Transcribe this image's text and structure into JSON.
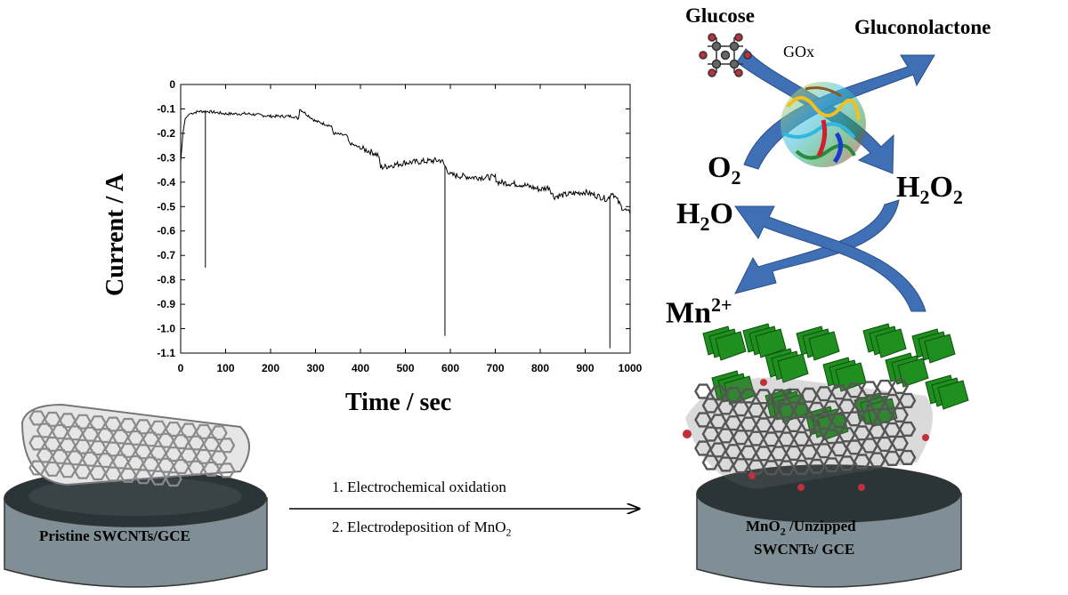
{
  "chart_data": {
    "type": "line",
    "xlabel": "Time / sec",
    "ylabel": "Current /  A",
    "xlim": [
      0,
      1000
    ],
    "ylim": [
      -1.1,
      0
    ],
    "xticks": [
      0,
      100,
      200,
      300,
      400,
      500,
      600,
      700,
      800,
      900,
      1000
    ],
    "xtick_labels": [
      "0",
      "100",
      "200",
      "300",
      "400",
      "500",
      "600",
      "700",
      "800",
      "900",
      "1000"
    ],
    "yticks": [
      0,
      -0.1,
      -0.2,
      -0.3,
      -0.4,
      -0.5,
      -0.6,
      -0.7,
      -0.8,
      -0.9,
      -1.0,
      -1.1
    ],
    "ytick_labels": [
      "0",
      "-0.1",
      "-0.2",
      "-0.3",
      "-0.4",
      "-0.5",
      "-0.6",
      "-0.7",
      "-0.8",
      "-0.9",
      "-1.0",
      "-1.1"
    ],
    "grid": false,
    "series": [
      {
        "x": [
          0,
          5,
          10,
          20,
          40,
          60,
          100,
          150,
          200,
          250,
          262,
          265,
          300,
          335,
          340,
          370,
          375,
          400,
          430,
          440,
          445,
          500,
          580,
          590,
          600,
          650,
          700,
          705,
          760,
          800,
          820,
          830,
          860,
          900,
          950,
          960,
          980,
          1000
        ],
        "y": [
          -0.32,
          -0.2,
          -0.14,
          -0.12,
          -0.11,
          -0.11,
          -0.12,
          -0.12,
          -0.13,
          -0.13,
          -0.14,
          -0.1,
          -0.15,
          -0.17,
          -0.2,
          -0.21,
          -0.24,
          -0.26,
          -0.28,
          -0.29,
          -0.34,
          -0.32,
          -0.31,
          -0.34,
          -0.37,
          -0.38,
          -0.38,
          -0.4,
          -0.41,
          -0.43,
          -0.42,
          -0.46,
          -0.45,
          -0.44,
          -0.47,
          -0.44,
          -0.5,
          -0.53
        ]
      }
    ],
    "spikes": [
      {
        "x": 55,
        "y": -0.75
      },
      {
        "x": 588,
        "y": -1.03
      },
      {
        "x": 955,
        "y": -1.08
      }
    ]
  },
  "scheme": {
    "glucose": "Glucose",
    "gluconolactone": "Gluconolactone",
    "enzyme": "GOx",
    "o2": {
      "base": "O",
      "sub": "2"
    },
    "h2o2": {
      "a": "H",
      "s1": "2",
      "b": "O",
      "s2": "2"
    },
    "h2o": {
      "a": "H",
      "s1": "2",
      "b": "O"
    },
    "mn": {
      "base": "Mn",
      "sup": "2+"
    }
  },
  "electrodes": {
    "left_label": "Pristine  SWCNTs/GCE",
    "right_line1_a": "MnO",
    "right_line1_sub": "2",
    "right_line1_b": " /Unzipped",
    "right_line2": "SWCNTs/ GCE"
  },
  "process": {
    "step1": "1. Electrochemical oxidation",
    "step2_a": "2. Electrodeposition of MnO",
    "step2_sub": "2"
  },
  "colors": {
    "arrow_blue": "#3f6fb4",
    "electrode_gray": "#7f8f95",
    "electrode_top": "#2b3436",
    "mno2_green": "#1f8f1f",
    "tube_white": "#d9d9d9",
    "tube_dark": "#555555"
  }
}
